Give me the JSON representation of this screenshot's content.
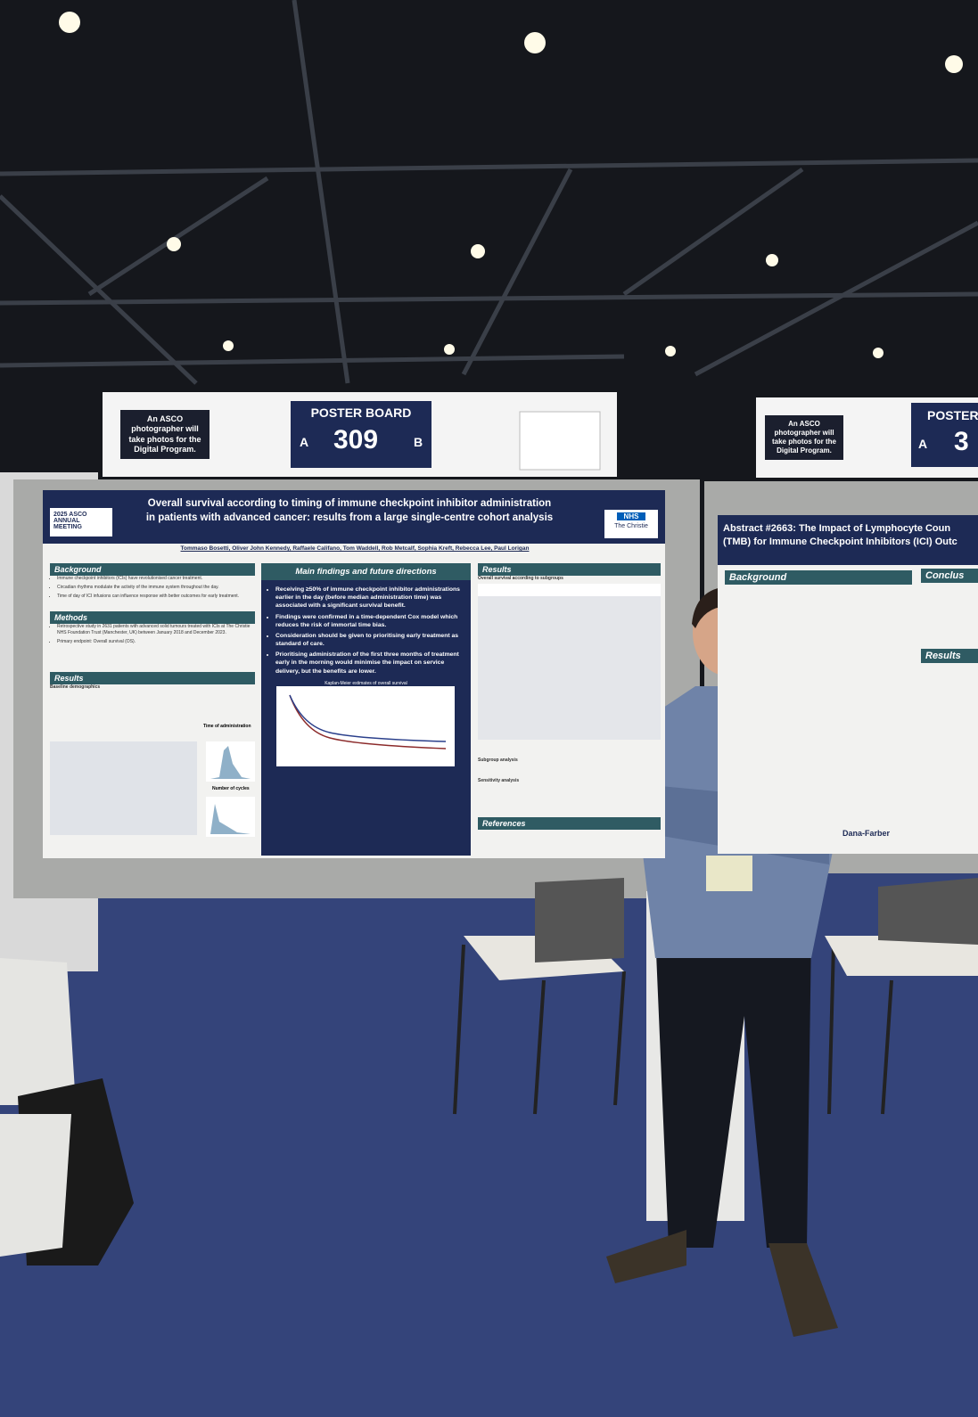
{
  "boards": [
    {
      "notice": "An ASCO photographer will take photos for the Digital Program.",
      "heading": "POSTER BOARD",
      "side_a": "A",
      "number": "309",
      "side_b": "B"
    },
    {
      "notice": "An ASCO photographer will take photos for the Digital Program.",
      "heading": "POSTER",
      "side_a": "A",
      "number": "3"
    }
  ],
  "poster": {
    "meeting": "2025 ASCO ANNUAL MEETING",
    "logo": "NHS",
    "org": "The Christie",
    "title_line1": "Overall survival according to timing of immune checkpoint inhibitor administration",
    "title_line2": "in patients with advanced cancer: results from a large single-centre cohort analysis",
    "authors": "Tommaso Bosetti, Oliver John Kennedy, Raffaele Califano, Tom Waddell, Rob Metcalf, Sophia Kreft, Rebecca Lee, Paul Lorigan",
    "background": "Background",
    "background_points": [
      "Immune checkpoint inhibitors (ICIs) have revolutionised cancer treatment.",
      "Circadian rhythms modulate the activity of the immune system throughout the day.",
      "Time of day of ICI infusions can influence response with better outcomes for early treatment."
    ],
    "methods": "Methods",
    "methods_points": [
      "Retrospective study in 2631 patients with advanced solid tumours treated with ICIs at The Christie NHS Foundation Trust (Manchester, UK) between January 2018 and December 2023.",
      "Primary endpoint: Overall survival (OS)."
    ],
    "results_left": "Results",
    "baseline": "Baseline demographics",
    "time_of_admin": "Time of administration",
    "cycles": "Number of cycles",
    "main": "Main findings and future directions",
    "findings": [
      "Receiving ≥50% of immune checkpoint inhibitor administrations earlier in the day (before median administration time) was associated with a significant survival benefit.",
      "Findings were confirmed in a time-dependent Cox model which reduces the risk of immortal time bias.",
      "Consideration should be given to prioritising early treatment as standard of care.",
      "Prioritising administration of the first three months of treatment early in the morning would minimise the impact on service delivery, but the benefits are lower."
    ],
    "km_title": "Kaplan-Meier estimates of overall survival",
    "results_right": "Results",
    "subgroups": "Overall survival according to subgroups",
    "subgroup_heading": "Subgroup analysis",
    "sensitivity_heading": "Sensitivity analysis",
    "references": "References"
  },
  "poster2": {
    "title_line1": "Abstract #2663: The Impact of Lymphocyte Coun",
    "title_line2": "(TMB) for Immune Checkpoint Inhibitors (ICI) Outc",
    "background": "Background",
    "conclusion": "Conclus",
    "results": "Results",
    "logo": "Dana-Farber"
  }
}
